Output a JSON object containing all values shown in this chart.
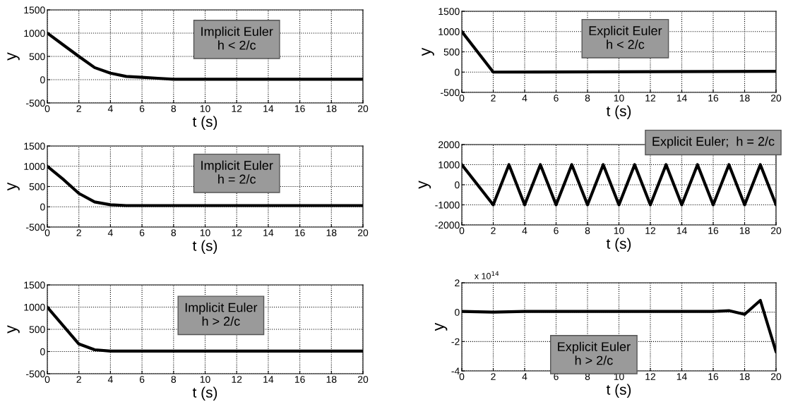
{
  "chart_data": [
    {
      "type": "line",
      "xlabel": "t (s)",
      "ylabel": "y",
      "annotations": [
        "Implicit Euler\nh < 2/c"
      ],
      "xlim": [
        0,
        20
      ],
      "xticks": [
        0,
        2,
        4,
        6,
        8,
        10,
        12,
        14,
        16,
        18,
        20
      ],
      "ylim": [
        -500,
        1500
      ],
      "yticks": [
        -500,
        0,
        500,
        1000,
        1500
      ],
      "grid": true,
      "legend": false,
      "marker": "none",
      "line_style": "solid",
      "series": [
        {
          "color": "#000000",
          "x": [
            0,
            1,
            2,
            3,
            4,
            5,
            6,
            7,
            8,
            20
          ],
          "values": [
            1000,
            750,
            500,
            260,
            140,
            70,
            50,
            30,
            10,
            10
          ]
        }
      ]
    },
    {
      "type": "line",
      "xlabel": "t (s)",
      "ylabel": "y",
      "annotations": [
        "Explicit Euler\nh < 2/c"
      ],
      "xlim": [
        0,
        20
      ],
      "xticks": [
        0,
        2,
        4,
        6,
        8,
        10,
        12,
        14,
        16,
        18,
        20
      ],
      "ylim": [
        -500,
        1500
      ],
      "yticks": [
        -500,
        0,
        500,
        1000,
        1500
      ],
      "grid": true,
      "legend": false,
      "marker": "none",
      "line_style": "solid",
      "series": [
        {
          "color": "#000000",
          "x": [
            0,
            2,
            20
          ],
          "values": [
            1000,
            0,
            20
          ]
        }
      ]
    },
    {
      "type": "line",
      "xlabel": "t (s)",
      "ylabel": "y",
      "annotations": [
        "Implicit Euler\nh = 2/c"
      ],
      "xlim": [
        0,
        20
      ],
      "xticks": [
        0,
        2,
        4,
        6,
        8,
        10,
        12,
        14,
        16,
        18,
        20
      ],
      "ylim": [
        -500,
        1500
      ],
      "yticks": [
        -500,
        0,
        500,
        1000,
        1500
      ],
      "grid": true,
      "legend": false,
      "marker": "none",
      "line_style": "solid",
      "series": [
        {
          "color": "#000000",
          "x": [
            0,
            1,
            2,
            3,
            4,
            5,
            20
          ],
          "values": [
            1000,
            680,
            330,
            120,
            50,
            30,
            30
          ]
        }
      ]
    },
    {
      "type": "line",
      "xlabel": "t (s)",
      "ylabel": "y",
      "annotations": [
        "Explicit Euler;  h = 2/c"
      ],
      "xlim": [
        0,
        20
      ],
      "xticks": [
        0,
        2,
        4,
        6,
        8,
        10,
        12,
        14,
        16,
        18,
        20
      ],
      "ylim": [
        -2000,
        2000
      ],
      "yticks": [
        -2000,
        -1000,
        0,
        1000,
        2000
      ],
      "grid": true,
      "legend": false,
      "marker": "none",
      "line_style": "solid",
      "series": [
        {
          "color": "#000000",
          "x": [
            0,
            2,
            3,
            4,
            5,
            6,
            7,
            8,
            9,
            10,
            11,
            12,
            13,
            14,
            15,
            16,
            17,
            18,
            19,
            20
          ],
          "values": [
            1000,
            -1000,
            1000,
            -1000,
            1000,
            -1000,
            1000,
            -1000,
            1000,
            -1000,
            1000,
            -1000,
            1000,
            -1000,
            1000,
            -1000,
            1000,
            -1000,
            1000,
            -1000
          ]
        }
      ]
    },
    {
      "type": "line",
      "xlabel": "t (s)",
      "ylabel": "y",
      "annotations": [
        "Implicit Euler\nh > 2/c"
      ],
      "xlim": [
        0,
        20
      ],
      "xticks": [
        0,
        2,
        4,
        6,
        8,
        10,
        12,
        14,
        16,
        18,
        20
      ],
      "ylim": [
        -500,
        1500
      ],
      "yticks": [
        -500,
        0,
        500,
        1000,
        1500
      ],
      "grid": true,
      "legend": false,
      "marker": "none",
      "line_style": "solid",
      "series": [
        {
          "color": "#000000",
          "x": [
            0,
            2,
            3,
            4,
            20
          ],
          "values": [
            1000,
            170,
            40,
            10,
            10
          ]
        }
      ]
    },
    {
      "type": "line",
      "xlabel": "t (s)",
      "ylabel": "y",
      "annotations": [
        "x 10$^{14}$",
        "Explicit Euler\nh > 2/c"
      ],
      "xlim": [
        0,
        20
      ],
      "xticks": [
        0,
        2,
        4,
        6,
        8,
        10,
        12,
        14,
        16,
        18,
        20
      ],
      "ylim": [
        -4,
        2
      ],
      "yticks": [
        -4,
        -2,
        0,
        2
      ],
      "grid": true,
      "legend": false,
      "marker": "none",
      "line_style": "solid",
      "series": [
        {
          "color": "#000000",
          "x": [
            0,
            2,
            4,
            6,
            8,
            10,
            12,
            14,
            16,
            17,
            18,
            19,
            20
          ],
          "values": [
            0.05,
            0.0,
            0.05,
            0.05,
            0.05,
            0.05,
            0.05,
            0.05,
            0.05,
            0.1,
            -0.15,
            0.8,
            -2.7
          ]
        }
      ]
    }
  ]
}
